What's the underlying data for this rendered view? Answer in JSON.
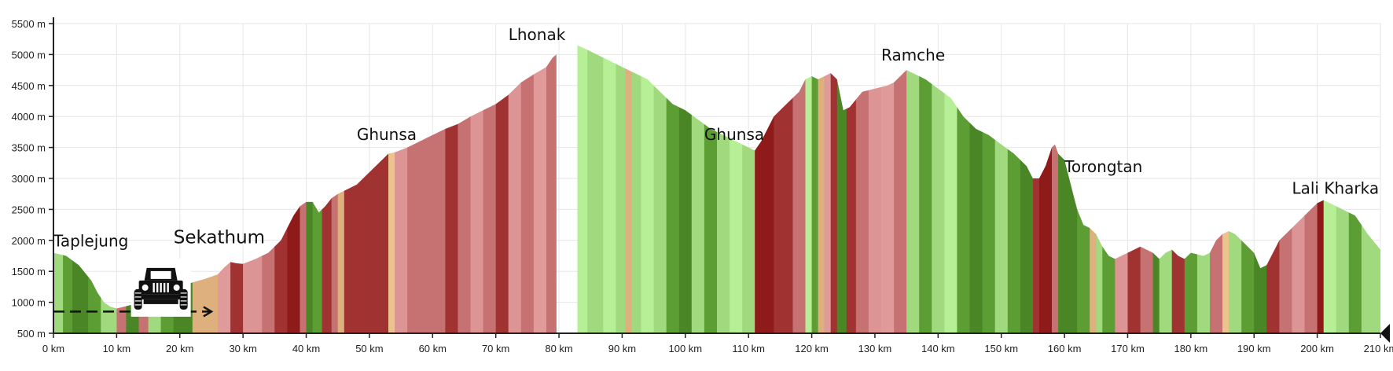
{
  "chart_data": {
    "type": "area",
    "title": "",
    "xlabel": "",
    "ylabel": "",
    "xlim": [
      0,
      210
    ],
    "ylim": [
      500,
      5500
    ],
    "x_unit": "km",
    "y_unit": "m",
    "grid": true,
    "x_ticks": [
      "0 km",
      "10 km",
      "20 km",
      "30 km",
      "40 km",
      "50 km",
      "60 km",
      "70 km",
      "80 km",
      "90 km",
      "100 km",
      "110 km",
      "120 km",
      "130 km",
      "140 km",
      "150 km",
      "160 km",
      "170 km",
      "180 km",
      "190 km",
      "200 km",
      "210 km"
    ],
    "y_ticks": [
      "500 m",
      "1000 m",
      "1500 m",
      "2000 m",
      "2500 m",
      "3000 m",
      "3500 m",
      "4000 m",
      "4500 m",
      "5000 m",
      "5500 m"
    ],
    "profile": [
      [
        0,
        1800
      ],
      [
        2,
        1750
      ],
      [
        4,
        1600
      ],
      [
        6,
        1350
      ],
      [
        7,
        1150
      ],
      [
        8,
        1000
      ],
      [
        9,
        930
      ],
      [
        10,
        900
      ],
      [
        12,
        950
      ],
      [
        14,
        1000
      ],
      [
        16,
        1050
      ],
      [
        18,
        1150
      ],
      [
        20,
        1250
      ],
      [
        22,
        1320
      ],
      [
        24,
        1380
      ],
      [
        26,
        1450
      ],
      [
        27,
        1560
      ],
      [
        28,
        1650
      ],
      [
        29,
        1630
      ],
      [
        30,
        1620
      ],
      [
        32,
        1700
      ],
      [
        34,
        1800
      ],
      [
        36,
        2000
      ],
      [
        37,
        2200
      ],
      [
        38,
        2400
      ],
      [
        39,
        2550
      ],
      [
        40,
        2620
      ],
      [
        41,
        2620
      ],
      [
        42,
        2450
      ],
      [
        43,
        2550
      ],
      [
        44,
        2680
      ],
      [
        45,
        2750
      ],
      [
        46,
        2800
      ],
      [
        48,
        2900
      ],
      [
        50,
        3100
      ],
      [
        52,
        3300
      ],
      [
        53,
        3400
      ],
      [
        54,
        3420
      ],
      [
        56,
        3500
      ],
      [
        58,
        3600
      ],
      [
        60,
        3700
      ],
      [
        62,
        3800
      ],
      [
        64,
        3880
      ],
      [
        66,
        4000
      ],
      [
        68,
        4100
      ],
      [
        70,
        4200
      ],
      [
        72,
        4350
      ],
      [
        74,
        4550
      ],
      [
        76,
        4680
      ],
      [
        78,
        4800
      ],
      [
        79,
        4950
      ],
      [
        79.6,
        5000
      ],
      [
        79.61,
        500
      ],
      [
        82.9,
        500
      ],
      [
        82.91,
        5150
      ],
      [
        84,
        5100
      ],
      [
        86,
        5000
      ],
      [
        88,
        4900
      ],
      [
        90,
        4800
      ],
      [
        92,
        4700
      ],
      [
        94,
        4600
      ],
      [
        96,
        4400
      ],
      [
        98,
        4200
      ],
      [
        100,
        4100
      ],
      [
        102,
        3950
      ],
      [
        104,
        3800
      ],
      [
        106,
        3700
      ],
      [
        108,
        3600
      ],
      [
        110,
        3500
      ],
      [
        111,
        3450
      ],
      [
        112,
        3600
      ],
      [
        114,
        4000
      ],
      [
        116,
        4200
      ],
      [
        118,
        4400
      ],
      [
        119,
        4600
      ],
      [
        120,
        4650
      ],
      [
        121,
        4600
      ],
      [
        122,
        4650
      ],
      [
        123,
        4700
      ],
      [
        124,
        4600
      ],
      [
        125,
        4100
      ],
      [
        126,
        4150
      ],
      [
        128,
        4400
      ],
      [
        130,
        4450
      ],
      [
        132,
        4500
      ],
      [
        133,
        4550
      ],
      [
        134,
        4650
      ],
      [
        135,
        4750
      ],
      [
        136,
        4700
      ],
      [
        138,
        4600
      ],
      [
        140,
        4450
      ],
      [
        142,
        4300
      ],
      [
        144,
        4000
      ],
      [
        146,
        3800
      ],
      [
        148,
        3700
      ],
      [
        150,
        3550
      ],
      [
        152,
        3400
      ],
      [
        154,
        3200
      ],
      [
        155,
        3000
      ],
      [
        156,
        3000
      ],
      [
        157,
        3200
      ],
      [
        158,
        3500
      ],
      [
        158.5,
        3550
      ],
      [
        159,
        3400
      ],
      [
        160,
        3300
      ],
      [
        161,
        2900
      ],
      [
        162,
        2500
      ],
      [
        163,
        2250
      ],
      [
        164,
        2200
      ],
      [
        165,
        2100
      ],
      [
        166,
        1900
      ],
      [
        167,
        1750
      ],
      [
        168,
        1700
      ],
      [
        170,
        1800
      ],
      [
        172,
        1900
      ],
      [
        174,
        1800
      ],
      [
        175,
        1700
      ],
      [
        176,
        1800
      ],
      [
        177,
        1850
      ],
      [
        178,
        1750
      ],
      [
        179,
        1700
      ],
      [
        180,
        1800
      ],
      [
        182,
        1750
      ],
      [
        183,
        1800
      ],
      [
        184,
        2000
      ],
      [
        185,
        2100
      ],
      [
        186,
        2150
      ],
      [
        187,
        2100
      ],
      [
        188,
        2000
      ],
      [
        190,
        1800
      ],
      [
        191,
        1550
      ],
      [
        192,
        1600
      ],
      [
        194,
        2000
      ],
      [
        196,
        2200
      ],
      [
        198,
        2400
      ],
      [
        200,
        2600
      ],
      [
        201,
        2650
      ],
      [
        202,
        2600
      ],
      [
        204,
        2500
      ],
      [
        206,
        2400
      ],
      [
        208,
        2100
      ],
      [
        210,
        1850
      ]
    ],
    "segments": [
      [
        0,
        1.5,
        "#a0d97e"
      ],
      [
        1.5,
        3,
        "#5c9e33"
      ],
      [
        3,
        5.5,
        "#4a8626"
      ],
      [
        5.5,
        7.5,
        "#5c9e33"
      ],
      [
        7.5,
        10,
        "#a0d97e"
      ],
      [
        10,
        11.5,
        "#c67272"
      ],
      [
        11.5,
        13.5,
        "#4a8626"
      ],
      [
        13.5,
        15,
        "#c67272"
      ],
      [
        15,
        17,
        "#a0d97e"
      ],
      [
        17,
        19,
        "#5c9e33"
      ],
      [
        19,
        22,
        "#4a8626"
      ],
      [
        22,
        26,
        "#ddb07e"
      ],
      [
        26,
        28,
        "#e09a9a"
      ],
      [
        28,
        30,
        "#a03232"
      ],
      [
        30,
        33,
        "#dd9494"
      ],
      [
        33,
        35,
        "#c67272"
      ],
      [
        35,
        37,
        "#a03232"
      ],
      [
        37,
        39,
        "#8e1a1a"
      ],
      [
        39,
        40,
        "#c67272"
      ],
      [
        40,
        41,
        "#4a8626"
      ],
      [
        41,
        42.5,
        "#5c9e33"
      ],
      [
        42.5,
        44,
        "#a03232"
      ],
      [
        44,
        45,
        "#c67272"
      ],
      [
        45,
        46,
        "#ddb07e"
      ],
      [
        46,
        47.5,
        "#a03232"
      ],
      [
        47.5,
        53,
        "#a03232"
      ],
      [
        53,
        54,
        "#ebc38d"
      ],
      [
        54,
        56,
        "#dd9494"
      ],
      [
        56,
        62,
        "#c67272"
      ],
      [
        62,
        64,
        "#a03232"
      ],
      [
        64,
        66,
        "#c67272"
      ],
      [
        66,
        68,
        "#dd9494"
      ],
      [
        68,
        70,
        "#c67272"
      ],
      [
        70,
        72,
        "#a03232"
      ],
      [
        72,
        74,
        "#dd9494"
      ],
      [
        74,
        76,
        "#c67272"
      ],
      [
        76,
        78,
        "#e09a9a"
      ],
      [
        78,
        79.6,
        "#c67272"
      ],
      [
        82.9,
        84.5,
        "#b6ef96"
      ],
      [
        84.5,
        87,
        "#a0d97e"
      ],
      [
        87,
        89,
        "#b6ef96"
      ],
      [
        89,
        90.5,
        "#a0d97e"
      ],
      [
        90.5,
        91.5,
        "#ddb07e"
      ],
      [
        91.5,
        93,
        "#a0d97e"
      ],
      [
        93,
        95,
        "#b6ef96"
      ],
      [
        95,
        97,
        "#a0d97e"
      ],
      [
        97,
        99,
        "#5c9e33"
      ],
      [
        99,
        101,
        "#4a8626"
      ],
      [
        101,
        103,
        "#a0d97e"
      ],
      [
        103,
        105,
        "#5c9e33"
      ],
      [
        105,
        107,
        "#a0d97e"
      ],
      [
        107,
        109,
        "#b6ef96"
      ],
      [
        109,
        111,
        "#a0d97e"
      ],
      [
        111,
        114,
        "#8e1a1a"
      ],
      [
        114,
        117,
        "#a03232"
      ],
      [
        117,
        119,
        "#c67272"
      ],
      [
        119,
        120,
        "#b6ef96"
      ],
      [
        120,
        121,
        "#5c9e33"
      ],
      [
        121,
        122,
        "#ddb07e"
      ],
      [
        122,
        123,
        "#e09a9a"
      ],
      [
        123,
        124,
        "#a03232"
      ],
      [
        124,
        125.5,
        "#4a8626"
      ],
      [
        125.5,
        127,
        "#a03232"
      ],
      [
        127,
        129,
        "#c67272"
      ],
      [
        129,
        131,
        "#dd9494"
      ],
      [
        131,
        133,
        "#e09a9a"
      ],
      [
        133,
        135,
        "#c67272"
      ],
      [
        135,
        137,
        "#a0d97e"
      ],
      [
        137,
        139,
        "#5c9e33"
      ],
      [
        139,
        141,
        "#a0d97e"
      ],
      [
        141,
        143,
        "#b6ef96"
      ],
      [
        143,
        145,
        "#5c9e33"
      ],
      [
        145,
        147,
        "#4a8626"
      ],
      [
        147,
        149,
        "#5c9e33"
      ],
      [
        149,
        151,
        "#a0d97e"
      ],
      [
        151,
        153,
        "#5c9e33"
      ],
      [
        153,
        155,
        "#4a8626"
      ],
      [
        155,
        156,
        "#a03232"
      ],
      [
        156,
        158,
        "#8e1a1a"
      ],
      [
        158,
        159,
        "#c67272"
      ],
      [
        159,
        162,
        "#4a8626"
      ],
      [
        162,
        164,
        "#5c9e33"
      ],
      [
        164,
        165,
        "#ddb07e"
      ],
      [
        165,
        166,
        "#a0d97e"
      ],
      [
        166,
        168,
        "#5c9e33"
      ],
      [
        168,
        170,
        "#dd9494"
      ],
      [
        170,
        172,
        "#a03232"
      ],
      [
        172,
        174,
        "#c67272"
      ],
      [
        174,
        175,
        "#4a8626"
      ],
      [
        175,
        177,
        "#a0d97e"
      ],
      [
        177,
        179,
        "#a03232"
      ],
      [
        179,
        181,
        "#5c9e33"
      ],
      [
        181,
        183,
        "#a0d97e"
      ],
      [
        183,
        185,
        "#c67272"
      ],
      [
        185,
        186,
        "#ebc38d"
      ],
      [
        186,
        188,
        "#a0d97e"
      ],
      [
        188,
        190,
        "#5c9e33"
      ],
      [
        190,
        192,
        "#4a8626"
      ],
      [
        192,
        194,
        "#a03232"
      ],
      [
        194,
        196,
        "#c67272"
      ],
      [
        196,
        198,
        "#dd9494"
      ],
      [
        198,
        200,
        "#c67272"
      ],
      [
        200,
        201,
        "#8e1a1a"
      ],
      [
        201,
        203,
        "#b6ef96"
      ],
      [
        203,
        205,
        "#a0d97e"
      ],
      [
        205,
        207,
        "#5c9e33"
      ],
      [
        207,
        210,
        "#a0d97e"
      ]
    ],
    "annotations": [
      {
        "text": "Taplejung",
        "x": 0,
        "y": 1800,
        "size": "normal"
      },
      {
        "text": "Sekathum",
        "x": 19,
        "y": 1850,
        "size": "big"
      },
      {
        "text": "Ghunsa",
        "x": 48,
        "y": 3520,
        "size": "normal"
      },
      {
        "text": "Lhonak",
        "x": 72,
        "y": 5130,
        "size": "normal"
      },
      {
        "text": "Ghunsa",
        "x": 103,
        "y": 3520,
        "size": "normal"
      },
      {
        "text": "Ramche",
        "x": 131,
        "y": 4800,
        "size": "normal"
      },
      {
        "text": "Torongtan",
        "x": 160,
        "y": 3000,
        "size": "normal"
      },
      {
        "text": "Lali Kharka",
        "x": 196,
        "y": 2650,
        "size": "normal"
      }
    ],
    "jeep_route": {
      "x_start": 0,
      "x_end": 25,
      "y": 850
    },
    "colors": {
      "grid": "#e6e6e6",
      "axis": "#222222",
      "text": "#222222"
    },
    "icons": [
      "jeep-icon"
    ]
  }
}
